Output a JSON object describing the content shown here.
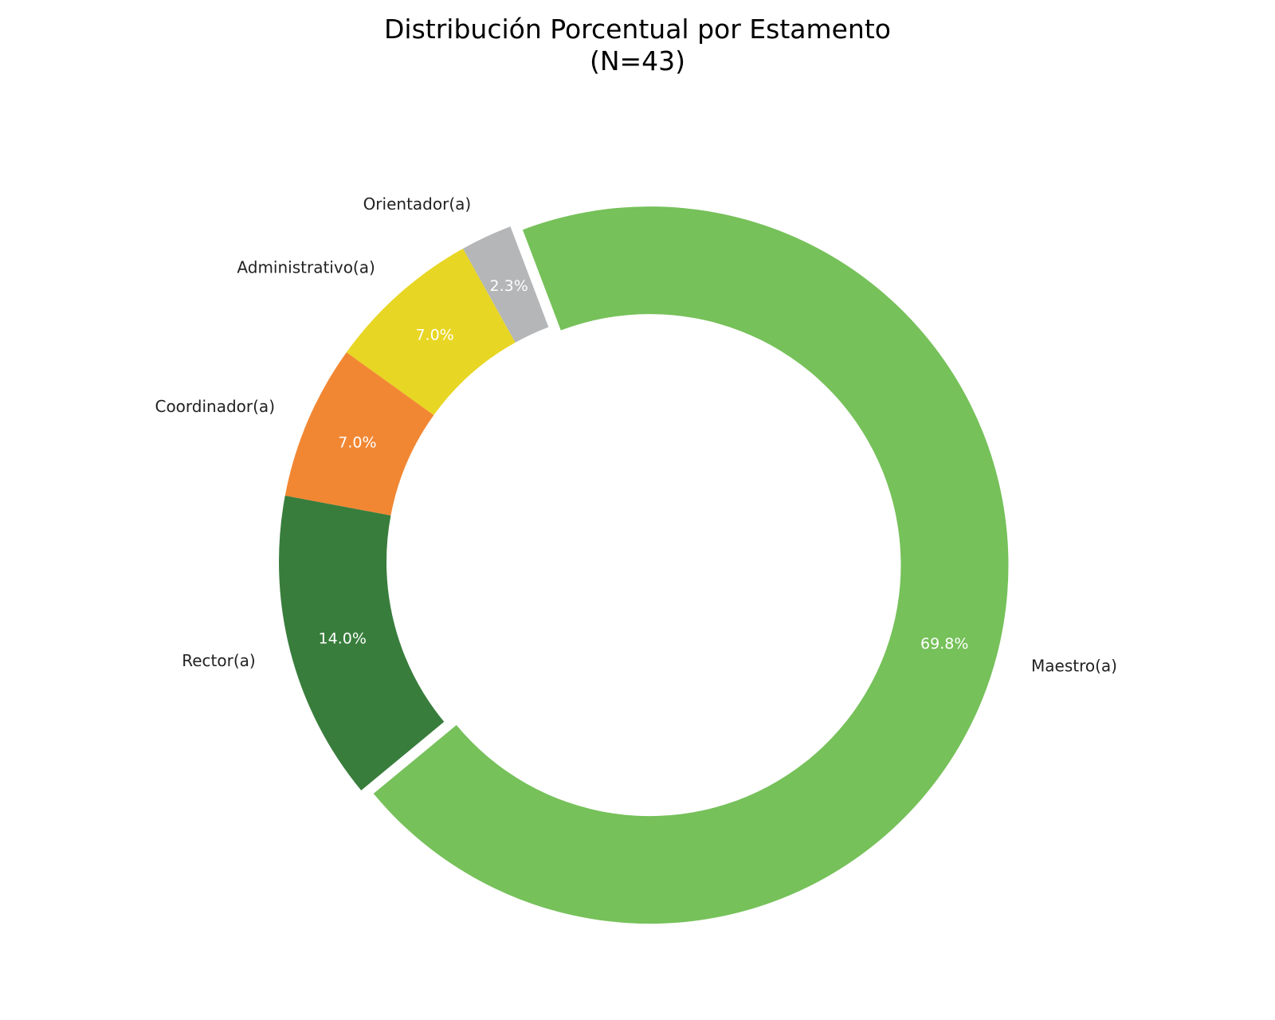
{
  "chart_data": {
    "type": "pie",
    "donut": true,
    "title": "Distribución Porcentual por Estamento",
    "subtitle": "(N=43)",
    "slices": [
      {
        "label": "Maestro(a)",
        "value": 30,
        "percent_label": "69.8%",
        "color": "#76c15a",
        "exploded": true
      },
      {
        "label": "Orientador(a)",
        "value": 1,
        "percent_label": "2.3%",
        "color": "#b4b6b8",
        "exploded": false
      },
      {
        "label": "Administrativo(a)",
        "value": 3,
        "percent_label": "7.0%",
        "color": "#e8d624",
        "exploded": false
      },
      {
        "label": "Coordinador(a)",
        "value": 3,
        "percent_label": "7.0%",
        "color": "#f28733",
        "exploded": false
      },
      {
        "label": "Rector(a)",
        "value": 6,
        "percent_label": "14.0%",
        "color": "#387d3c",
        "exploded": false
      }
    ],
    "legend": false
  }
}
